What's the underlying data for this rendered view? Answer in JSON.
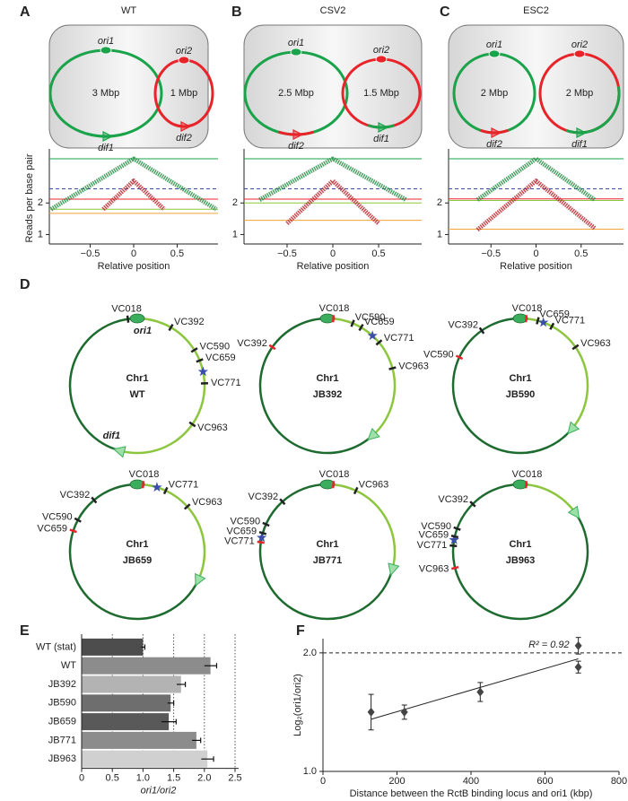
{
  "panel_labels": [
    "A",
    "B",
    "C",
    "D",
    "E",
    "F"
  ],
  "cells": [
    {
      "title": "WT",
      "chromosomes": [
        {
          "ori": "ori1",
          "size": "3 Mbp",
          "dif": "dif1",
          "color": "#1aa34a",
          "dif_color": "#1aa34a"
        },
        {
          "ori": "ori2",
          "size": "1 Mbp",
          "dif": "dif2",
          "color": "#e8242a",
          "dif_color": "#e8242a"
        }
      ]
    },
    {
      "title": "CSV2",
      "chromosomes": [
        {
          "ori": "ori1",
          "size": "2.5 Mbp",
          "dif": "dif2",
          "color": "#1aa34a",
          "dif_color": "#e8242a"
        },
        {
          "ori": "ori2",
          "size": "1.5 Mbp",
          "dif": "dif1",
          "color": "#e8242a",
          "dif_color": "#1aa34a"
        }
      ]
    },
    {
      "title": "ESC2",
      "chromosomes": [
        {
          "ori": "ori1",
          "size": "2 Mbp",
          "dif": "dif2",
          "color": "#1aa34a",
          "dif_color": "#e8242a"
        },
        {
          "ori": "ori2",
          "size": "2 Mbp",
          "dif": "dif1",
          "color": "#e8242a",
          "dif_color": "#1aa34a"
        }
      ]
    }
  ],
  "genomes": [
    {
      "chromosome": "Chr1",
      "strain": "WT",
      "ori": "ori1",
      "dif": "dif1",
      "loci": [
        {
          "label": "VC018",
          "color": "#222222"
        },
        {
          "label": "VC392",
          "color": "#222222"
        },
        {
          "label": "VC590",
          "color": "#222222"
        },
        {
          "label": "VC659",
          "color": "#222222"
        },
        {
          "label": "VC771",
          "color": "#222222"
        },
        {
          "label": "VC963",
          "color": "#222222"
        }
      ]
    },
    {
      "chromosome": "Chr1",
      "strain": "JB392",
      "loci": [
        {
          "label": "VC392",
          "color": "#e8242a"
        },
        {
          "label": "VC018",
          "color": "#e8242a"
        },
        {
          "label": "VC590",
          "color": "#222222"
        },
        {
          "label": "VC659",
          "color": "#222222"
        },
        {
          "label": "VC771",
          "color": "#222222"
        },
        {
          "label": "VC963",
          "color": "#222222"
        }
      ]
    },
    {
      "chromosome": "Chr1",
      "strain": "JB590",
      "loci": [
        {
          "label": "VC590",
          "color": "#e8242a"
        },
        {
          "label": "VC392",
          "color": "#222222"
        },
        {
          "label": "VC018",
          "color": "#e8242a"
        },
        {
          "label": "VC659",
          "color": "#222222"
        },
        {
          "label": "VC771",
          "color": "#222222"
        },
        {
          "label": "VC963",
          "color": "#222222"
        }
      ]
    },
    {
      "chromosome": "Chr1",
      "strain": "JB659",
      "loci": [
        {
          "label": "VC659",
          "color": "#e8242a"
        },
        {
          "label": "VC590",
          "color": "#222222"
        },
        {
          "label": "VC392",
          "color": "#222222"
        },
        {
          "label": "VC018",
          "color": "#e8242a"
        },
        {
          "label": "VC771",
          "color": "#222222"
        },
        {
          "label": "VC963",
          "color": "#222222"
        }
      ]
    },
    {
      "chromosome": "Chr1",
      "strain": "JB771",
      "loci": [
        {
          "label": "VC771",
          "color": "#e8242a"
        },
        {
          "label": "VC659",
          "color": "#222222"
        },
        {
          "label": "VC590",
          "color": "#222222"
        },
        {
          "label": "VC392",
          "color": "#222222"
        },
        {
          "label": "VC018",
          "color": "#e8242a"
        },
        {
          "label": "VC963",
          "color": "#222222"
        }
      ]
    },
    {
      "chromosome": "Chr1",
      "strain": "JB963",
      "loci": [
        {
          "label": "VC963",
          "color": "#e8242a"
        },
        {
          "label": "VC771",
          "color": "#222222"
        },
        {
          "label": "VC659",
          "color": "#222222"
        },
        {
          "label": "VC590",
          "color": "#222222"
        },
        {
          "label": "VC392",
          "color": "#222222"
        },
        {
          "label": "VC018",
          "color": "#e8242a"
        }
      ]
    }
  ],
  "chart_data": [
    {
      "type": "line",
      "ylabel": "Reads per base pair",
      "xlabel": "Relative position",
      "xlim": [
        -0.97,
        0.97
      ],
      "xticks": [
        {
          "value": -0.5,
          "label": "−0.5"
        },
        0,
        0.5
      ],
      "ylim": [
        0.7,
        3.6
      ],
      "yticks": [
        1,
        2
      ],
      "series": [
        {
          "color": "#1f8a3e",
          "x": [
            -0.95,
            0,
            0.95
          ],
          "values": [
            1.8,
            3.4,
            1.8
          ]
        },
        {
          "color": "#b81e25",
          "x": [
            -0.35,
            0,
            0.35
          ],
          "values": [
            1.8,
            2.7,
            1.8
          ]
        }
      ],
      "reference_lines": [
        {
          "value": 3.4,
          "color": "#1aa34a",
          "dashed": false
        },
        {
          "value": 2.45,
          "color": "#3b4fa8",
          "dashed": true
        },
        {
          "value": 2.12,
          "color": "#e8242a",
          "dashed": false
        },
        {
          "value": 1.8,
          "color": "#8cc63f",
          "dashed": false
        },
        {
          "value": 1.67,
          "color": "#f2a33a",
          "dashed": false
        }
      ]
    },
    {
      "type": "line",
      "xlabel": "Relative position",
      "xlim": [
        -0.97,
        0.97
      ],
      "xticks": [
        {
          "value": -0.5,
          "label": "−0.5"
        },
        0,
        0.5
      ],
      "ylim": [
        0.7,
        3.6
      ],
      "yticks": [
        1,
        2
      ],
      "series": [
        {
          "color": "#1f8a3e",
          "x": [
            -0.8,
            0,
            0.8
          ],
          "values": [
            2.1,
            3.4,
            2.1
          ]
        },
        {
          "color": "#b81e25",
          "x": [
            -0.5,
            0,
            0.5
          ],
          "values": [
            1.35,
            2.7,
            1.35
          ]
        }
      ],
      "reference_lines": [
        {
          "value": 3.4,
          "color": "#1aa34a",
          "dashed": false
        },
        {
          "value": 2.45,
          "color": "#3b4fa8",
          "dashed": true
        },
        {
          "value": 2.12,
          "color": "#e8242a",
          "dashed": false
        },
        {
          "value": 2.0,
          "color": "#8cc63f",
          "dashed": false
        },
        {
          "value": 1.45,
          "color": "#f2a33a",
          "dashed": false
        }
      ]
    },
    {
      "type": "line",
      "xlabel": "Relative position",
      "xlim": [
        -0.97,
        0.97
      ],
      "xticks": [
        {
          "value": -0.5,
          "label": "−0.5"
        },
        0,
        0.5
      ],
      "ylim": [
        0.7,
        3.6
      ],
      "yticks": [
        1,
        2
      ],
      "series": [
        {
          "color": "#1f8a3e",
          "x": [
            -0.65,
            0,
            0.65
          ],
          "values": [
            2.1,
            3.4,
            2.1
          ]
        },
        {
          "color": "#b81e25",
          "x": [
            -0.65,
            0,
            0.65
          ],
          "values": [
            1.15,
            2.7,
            1.2
          ]
        }
      ],
      "reference_lines": [
        {
          "value": 3.4,
          "color": "#1aa34a",
          "dashed": false
        },
        {
          "value": 2.45,
          "color": "#3b4fa8",
          "dashed": true
        },
        {
          "value": 2.13,
          "color": "#e8242a",
          "dashed": false
        },
        {
          "value": 2.08,
          "color": "#8cc63f",
          "dashed": false
        },
        {
          "value": 1.17,
          "color": "#f2a33a",
          "dashed": false
        }
      ]
    },
    {
      "type": "hbar",
      "xlabel": "ori1/ori2",
      "categories": [
        "WT (stat)",
        "WT",
        "JB392",
        "JB590",
        "JB659",
        "JB771",
        "JB963"
      ],
      "values": [
        1.0,
        2.1,
        1.62,
        1.45,
        1.42,
        1.87,
        2.05
      ],
      "errors": [
        0.03,
        0.1,
        0.07,
        0.05,
        0.12,
        0.07,
        0.1
      ],
      "colors": [
        "#4d4d4d",
        "#8c8c8c",
        "#b3b3b3",
        "#6e6e6e",
        "#595959",
        "#8c8c8c",
        "#d0d0d0"
      ],
      "xlim": [
        0,
        2.5
      ],
      "xticks": [
        0,
        0.5,
        {
          "value": 1,
          "label": "1.0"
        },
        1.5,
        {
          "value": 2,
          "label": "2.0"
        },
        2.5
      ],
      "grid": true
    },
    {
      "type": "scatter",
      "xlabel": "Distance between the RctB binding locus and ori1 (kbp)",
      "ylabel": "Log₂(ori1/ori2)",
      "x": [
        130,
        220,
        425,
        690,
        690
      ],
      "values": [
        1.5,
        1.5,
        1.67,
        1.88,
        2.06
      ],
      "errors": [
        0.15,
        0.06,
        0.08,
        0.05,
        0.07
      ],
      "color": "#444444",
      "fit": {
        "x": [
          130,
          690
        ],
        "values": [
          1.44,
          1.95
        ]
      },
      "reference_line": 2.0,
      "annotation": "R² = 0.92",
      "xlim": [
        0,
        800
      ],
      "xticks": [
        0,
        200,
        400,
        600,
        800
      ],
      "ylim": [
        1.0,
        2.12
      ],
      "yticks": [
        {
          "value": 1,
          "label": "1.0"
        },
        {
          "value": 2,
          "label": "2.0"
        }
      ]
    }
  ]
}
